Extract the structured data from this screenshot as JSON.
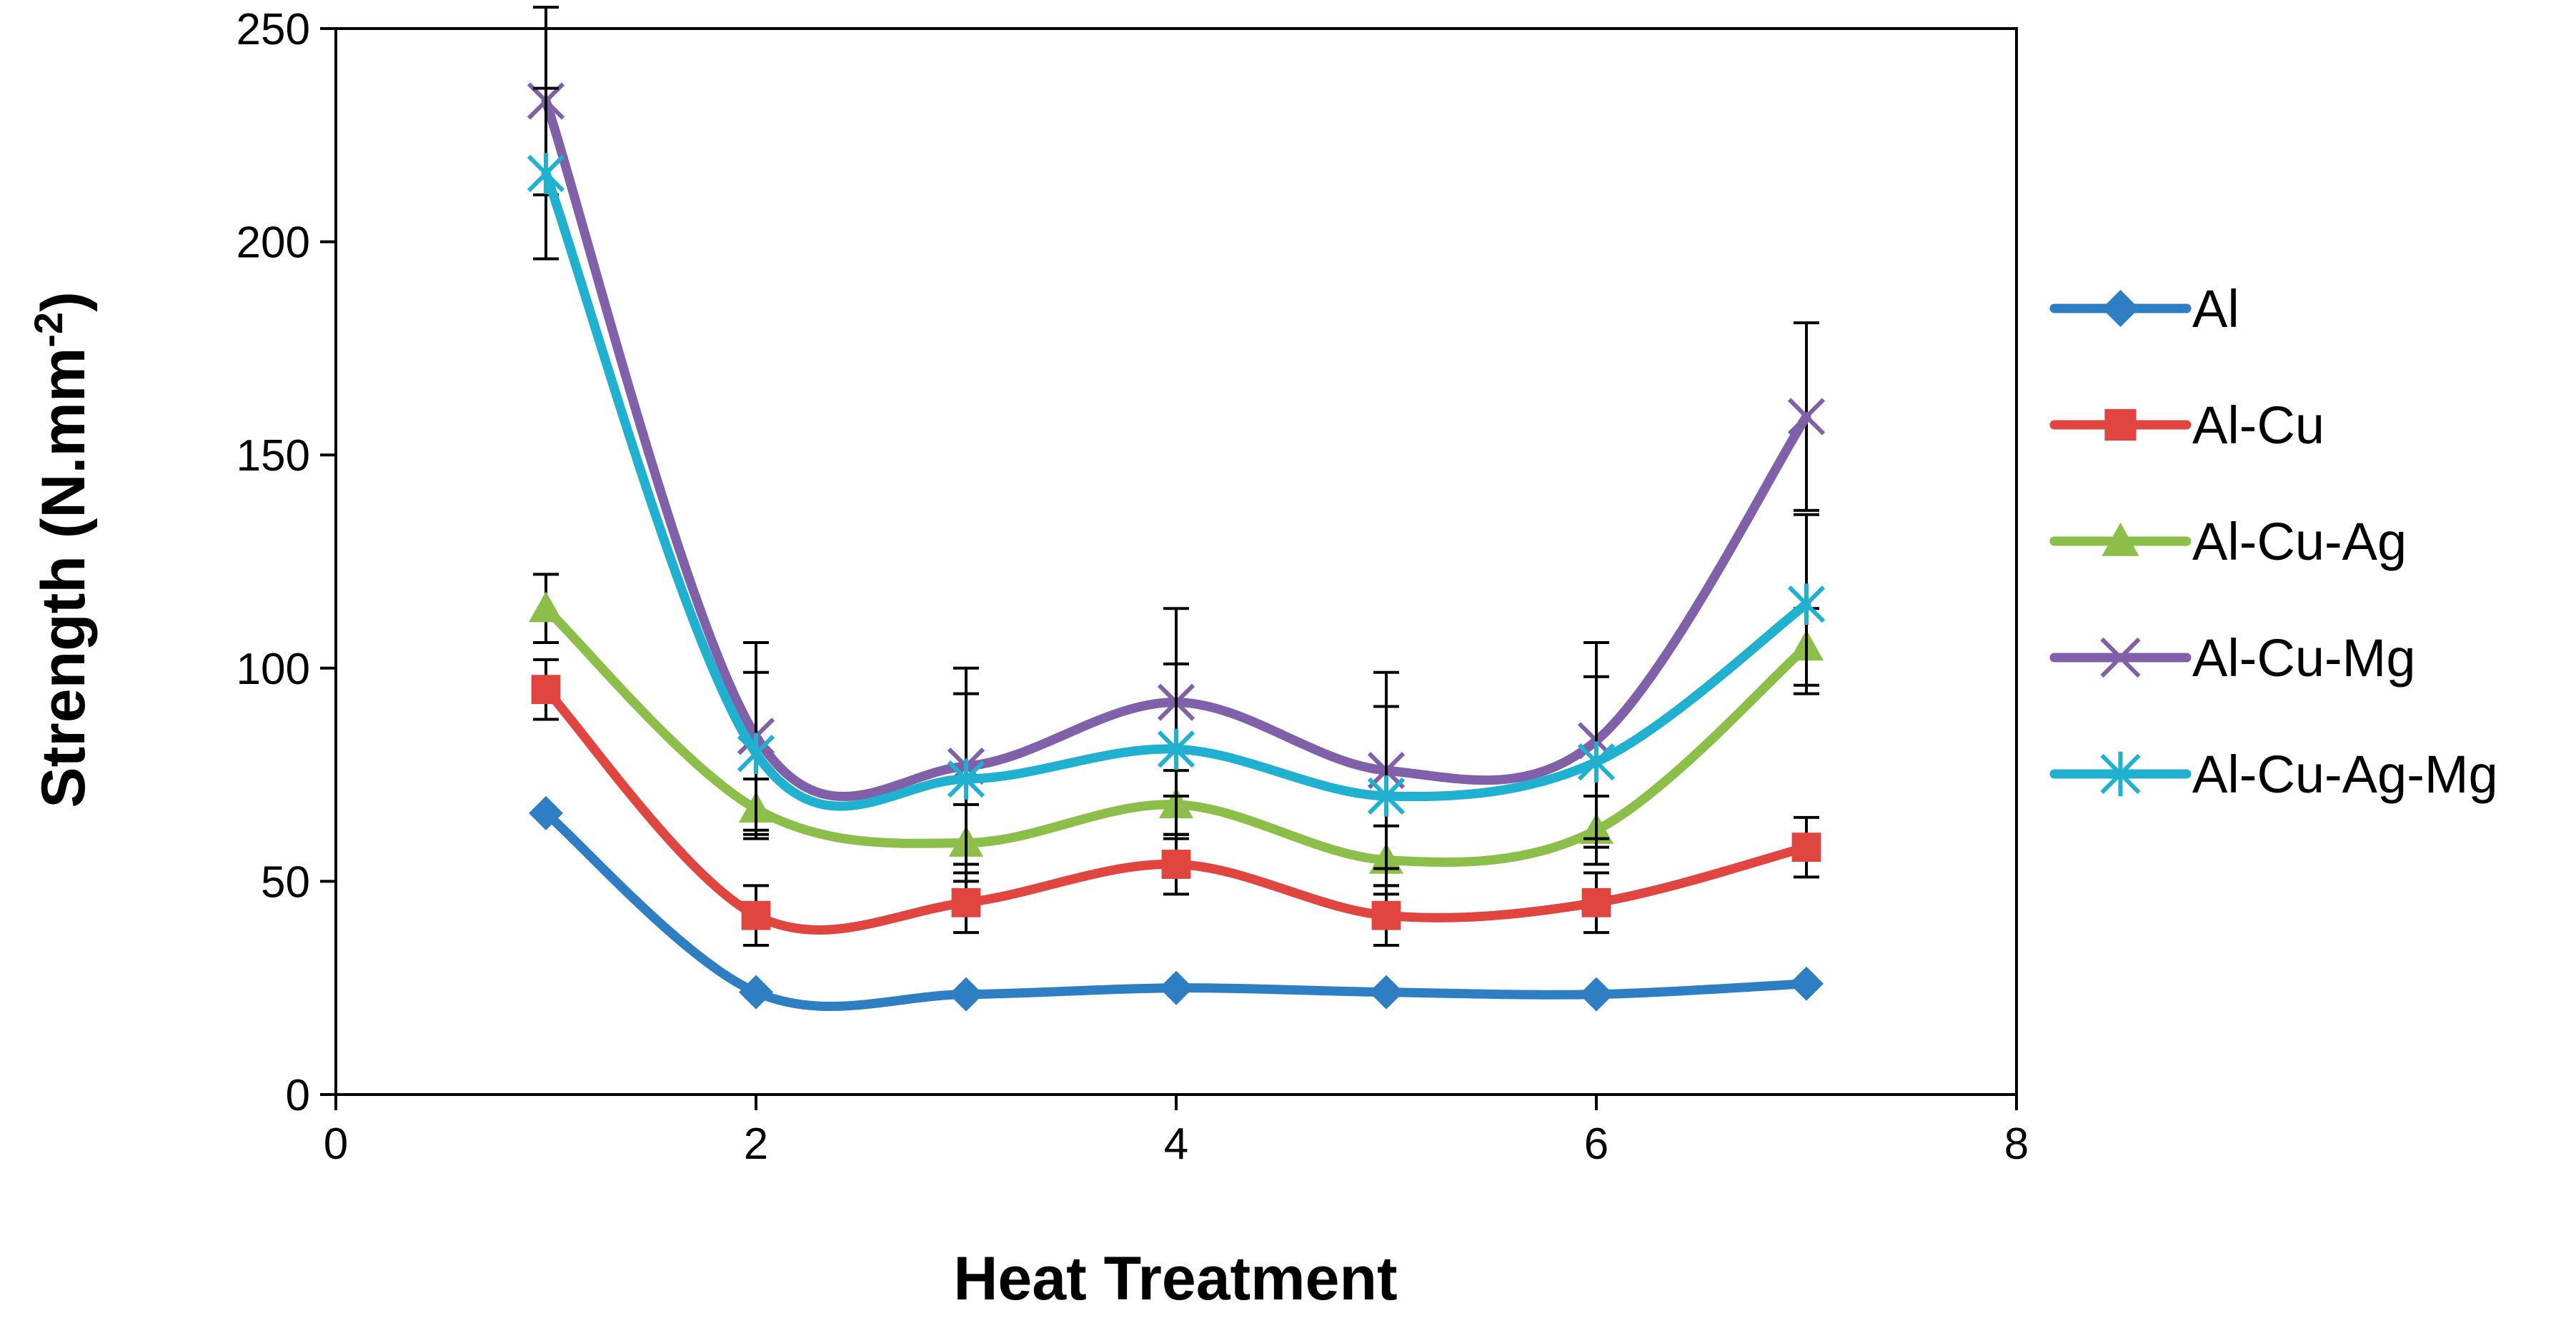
{
  "chart_data": {
    "type": "line",
    "smooth": true,
    "xlabel": "Heat Treatment",
    "ylabel_main": "Strength (N.mm",
    "ylabel_sup": "-2",
    "ylabel_close": ")",
    "xlim": [
      0,
      8
    ],
    "ylim": [
      0,
      250
    ],
    "xticks": [
      0,
      2,
      4,
      6,
      8
    ],
    "yticks": [
      0,
      50,
      100,
      150,
      200,
      250
    ],
    "x": [
      1,
      2,
      3,
      4,
      5,
      6,
      7
    ],
    "legend_position": "right",
    "series": [
      {
        "name": "Al",
        "color": "#2E7EC4",
        "marker": "diamond",
        "values": [
          66,
          24,
          23.5,
          25,
          24,
          23.5,
          26
        ],
        "errors": [
          0,
          0,
          0,
          0,
          0,
          0,
          0
        ]
      },
      {
        "name": "Al-Cu",
        "color": "#E0453F",
        "marker": "square",
        "values": [
          95,
          42,
          45,
          54,
          42,
          45,
          58
        ],
        "errors": [
          7,
          7,
          7,
          7,
          7,
          7,
          7
        ]
      },
      {
        "name": "Al-Cu-Ag",
        "color": "#8CBF4A",
        "marker": "triangle",
        "values": [
          114,
          67,
          59,
          68,
          55,
          62,
          105
        ],
        "errors": [
          8,
          7,
          9,
          8,
          8,
          8,
          9
        ]
      },
      {
        "name": "Al-Cu-Mg",
        "color": "#8060A8",
        "marker": "x",
        "values": [
          233,
          84,
          77,
          92,
          76,
          83,
          159
        ],
        "errors": [
          22,
          22,
          23,
          22,
          23,
          23,
          22
        ]
      },
      {
        "name": "Al-Cu-Ag-Mg",
        "color": "#1FB1CF",
        "marker": "asterisk",
        "values": [
          216,
          80,
          74,
          81,
          70,
          78,
          115
        ],
        "errors": [
          20,
          19,
          20,
          20,
          21,
          20,
          21
        ]
      }
    ]
  }
}
